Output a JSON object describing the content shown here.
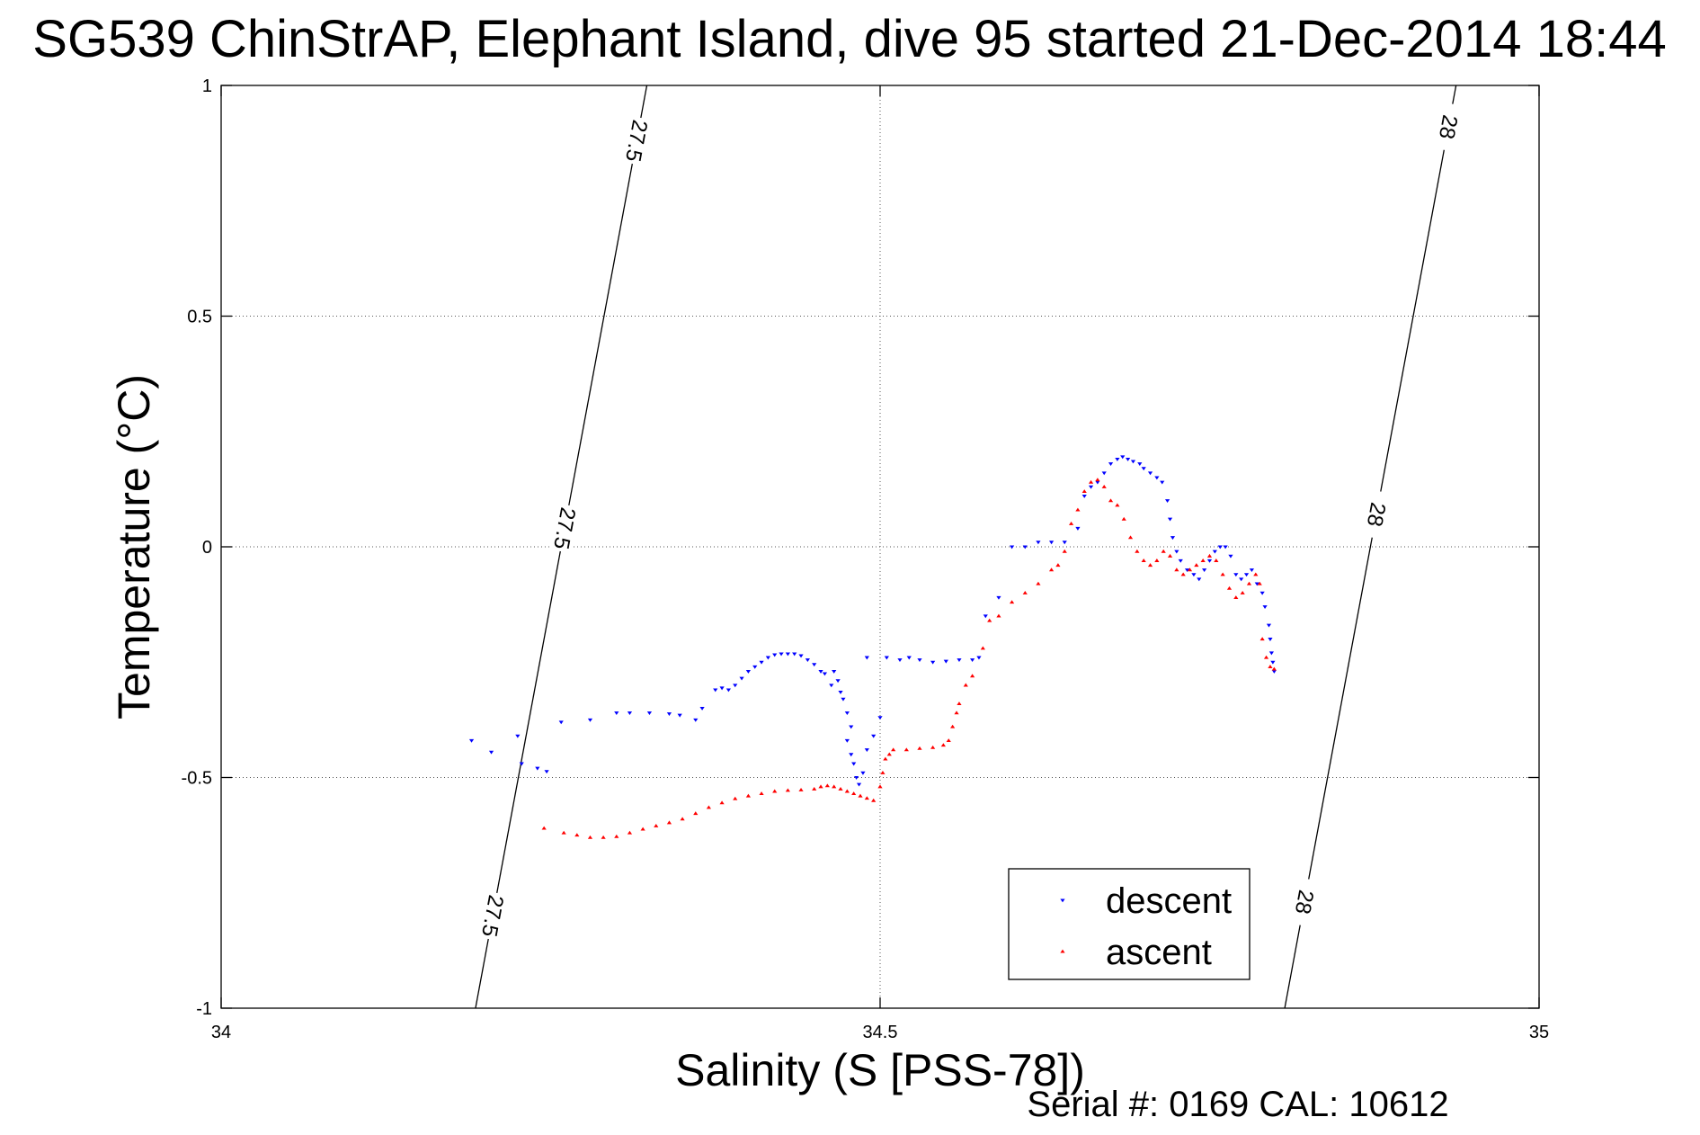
{
  "chart_data": {
    "type": "scatter",
    "title": "SG539 ChinStrAP, Elephant Island, dive 95 started 21-Dec-2014 18:44",
    "xlabel": "Salinity (S [PSS-78])",
    "ylabel": "Temperature (°C)",
    "xlim": [
      34,
      35
    ],
    "ylim": [
      -1,
      1
    ],
    "x_ticks": [
      {
        "value": 34,
        "label": "34"
      },
      {
        "value": 34.5,
        "label": "34.5"
      },
      {
        "value": 35,
        "label": "35"
      }
    ],
    "y_ticks": [
      {
        "value": 1,
        "label": "1"
      },
      {
        "value": 0.5,
        "label": "0.5"
      },
      {
        "value": 0,
        "label": "0"
      },
      {
        "value": -0.5,
        "label": "-0.5"
      },
      {
        "value": -1,
        "label": "-1"
      }
    ],
    "grid": true,
    "legend_position": "bottom-right",
    "series": [
      {
        "name": "descent",
        "marker": "triangle-down",
        "color": "#0000ff",
        "points": [
          [
            34.19,
            -0.42
          ],
          [
            34.205,
            -0.445
          ],
          [
            34.225,
            -0.41
          ],
          [
            34.228,
            -0.47
          ],
          [
            34.24,
            -0.48
          ],
          [
            34.247,
            -0.487
          ],
          [
            34.258,
            -0.38
          ],
          [
            34.28,
            -0.375
          ],
          [
            34.3,
            -0.36
          ],
          [
            34.31,
            -0.36
          ],
          [
            34.325,
            -0.36
          ],
          [
            34.34,
            -0.362
          ],
          [
            34.348,
            -0.365
          ],
          [
            34.36,
            -0.375
          ],
          [
            34.365,
            -0.35
          ],
          [
            34.375,
            -0.31
          ],
          [
            34.38,
            -0.306
          ],
          [
            34.385,
            -0.31
          ],
          [
            34.39,
            -0.3
          ],
          [
            34.395,
            -0.285
          ],
          [
            34.4,
            -0.27
          ],
          [
            34.405,
            -0.26
          ],
          [
            34.41,
            -0.25
          ],
          [
            34.415,
            -0.24
          ],
          [
            34.42,
            -0.234
          ],
          [
            34.425,
            -0.232
          ],
          [
            34.43,
            -0.232
          ],
          [
            34.435,
            -0.232
          ],
          [
            34.44,
            -0.236
          ],
          [
            34.445,
            -0.245
          ],
          [
            34.45,
            -0.255
          ],
          [
            34.455,
            -0.27
          ],
          [
            34.458,
            -0.275
          ],
          [
            34.463,
            -0.3
          ],
          [
            34.465,
            -0.27
          ],
          [
            34.468,
            -0.29
          ],
          [
            34.47,
            -0.315
          ],
          [
            34.472,
            -0.33
          ],
          [
            34.475,
            -0.36
          ],
          [
            34.478,
            -0.39
          ],
          [
            34.475,
            -0.42
          ],
          [
            34.478,
            -0.45
          ],
          [
            34.48,
            -0.47
          ],
          [
            34.482,
            -0.5
          ],
          [
            34.484,
            -0.515
          ],
          [
            34.487,
            -0.49
          ],
          [
            34.49,
            -0.44
          ],
          [
            34.495,
            -0.41
          ],
          [
            34.5,
            -0.37
          ],
          [
            34.49,
            -0.24
          ],
          [
            34.505,
            -0.24
          ],
          [
            34.515,
            -0.245
          ],
          [
            34.522,
            -0.24
          ],
          [
            34.53,
            -0.245
          ],
          [
            34.54,
            -0.25
          ],
          [
            34.55,
            -0.248
          ],
          [
            34.56,
            -0.245
          ],
          [
            34.57,
            -0.245
          ],
          [
            34.575,
            -0.24
          ],
          [
            34.58,
            -0.15
          ],
          [
            34.59,
            -0.11
          ],
          [
            34.6,
            0.0
          ],
          [
            34.61,
            0.0
          ],
          [
            34.62,
            0.01
          ],
          [
            34.63,
            0.01
          ],
          [
            34.64,
            0.01
          ],
          [
            34.65,
            0.04
          ],
          [
            34.655,
            0.11
          ],
          [
            34.66,
            0.13
          ],
          [
            34.665,
            0.14
          ],
          [
            34.67,
            0.16
          ],
          [
            34.675,
            0.18
          ],
          [
            34.68,
            0.19
          ],
          [
            34.684,
            0.195
          ],
          [
            34.688,
            0.19
          ],
          [
            34.692,
            0.185
          ],
          [
            34.697,
            0.18
          ],
          [
            34.7,
            0.17
          ],
          [
            34.705,
            0.16
          ],
          [
            34.71,
            0.15
          ],
          [
            34.714,
            0.14
          ],
          [
            34.718,
            0.1
          ],
          [
            34.72,
            0.06
          ],
          [
            34.722,
            0.02
          ],
          [
            34.725,
            -0.01
          ],
          [
            34.728,
            -0.03
          ],
          [
            34.733,
            -0.05
          ],
          [
            34.738,
            -0.06
          ],
          [
            34.742,
            -0.07
          ],
          [
            34.746,
            -0.05
          ],
          [
            34.75,
            -0.03
          ],
          [
            34.754,
            -0.01
          ],
          [
            34.758,
            0.0
          ],
          [
            34.762,
            0.0
          ],
          [
            34.766,
            -0.02
          ],
          [
            34.77,
            -0.06
          ],
          [
            34.774,
            -0.07
          ],
          [
            34.778,
            -0.06
          ],
          [
            34.782,
            -0.05
          ],
          [
            34.786,
            -0.08
          ],
          [
            34.79,
            -0.1
          ],
          [
            34.792,
            -0.13
          ],
          [
            34.795,
            -0.17
          ],
          [
            34.796,
            -0.2
          ],
          [
            34.797,
            -0.23
          ],
          [
            34.798,
            -0.25
          ],
          [
            34.799,
            -0.27
          ]
        ]
      },
      {
        "name": "ascent",
        "marker": "triangle-up",
        "color": "#ff0000",
        "points": [
          [
            34.245,
            -0.61
          ],
          [
            34.26,
            -0.62
          ],
          [
            34.27,
            -0.625
          ],
          [
            34.28,
            -0.63
          ],
          [
            34.29,
            -0.63
          ],
          [
            34.3,
            -0.628
          ],
          [
            34.31,
            -0.62
          ],
          [
            34.32,
            -0.612
          ],
          [
            34.33,
            -0.605
          ],
          [
            34.34,
            -0.598
          ],
          [
            34.35,
            -0.59
          ],
          [
            34.36,
            -0.578
          ],
          [
            34.37,
            -0.565
          ],
          [
            34.38,
            -0.555
          ],
          [
            34.39,
            -0.546
          ],
          [
            34.4,
            -0.54
          ],
          [
            34.41,
            -0.535
          ],
          [
            34.42,
            -0.53
          ],
          [
            34.43,
            -0.528
          ],
          [
            34.44,
            -0.527
          ],
          [
            34.45,
            -0.525
          ],
          [
            34.455,
            -0.52
          ],
          [
            34.46,
            -0.518
          ],
          [
            34.465,
            -0.52
          ],
          [
            34.47,
            -0.525
          ],
          [
            34.475,
            -0.53
          ],
          [
            34.48,
            -0.535
          ],
          [
            34.485,
            -0.54
          ],
          [
            34.49,
            -0.545
          ],
          [
            34.495,
            -0.55
          ],
          [
            34.5,
            -0.52
          ],
          [
            34.502,
            -0.49
          ],
          [
            34.504,
            -0.46
          ],
          [
            34.507,
            -0.45
          ],
          [
            34.51,
            -0.44
          ],
          [
            34.52,
            -0.44
          ],
          [
            34.53,
            -0.437
          ],
          [
            34.54,
            -0.435
          ],
          [
            34.548,
            -0.43
          ],
          [
            34.552,
            -0.42
          ],
          [
            34.555,
            -0.39
          ],
          [
            34.558,
            -0.36
          ],
          [
            34.56,
            -0.34
          ],
          [
            34.565,
            -0.3
          ],
          [
            34.57,
            -0.28
          ],
          [
            34.578,
            -0.22
          ],
          [
            34.583,
            -0.16
          ],
          [
            34.59,
            -0.15
          ],
          [
            34.6,
            -0.12
          ],
          [
            34.61,
            -0.1
          ],
          [
            34.62,
            -0.08
          ],
          [
            34.63,
            -0.05
          ],
          [
            34.635,
            -0.04
          ],
          [
            34.64,
            -0.01
          ],
          [
            34.645,
            0.05
          ],
          [
            34.65,
            0.08
          ],
          [
            34.655,
            0.12
          ],
          [
            34.66,
            0.14
          ],
          [
            34.665,
            0.145
          ],
          [
            34.67,
            0.13
          ],
          [
            34.675,
            0.1
          ],
          [
            34.68,
            0.09
          ],
          [
            34.685,
            0.06
          ],
          [
            34.69,
            0.02
          ],
          [
            34.695,
            -0.01
          ],
          [
            34.7,
            -0.03
          ],
          [
            34.705,
            -0.04
          ],
          [
            34.71,
            -0.03
          ],
          [
            34.715,
            -0.01
          ],
          [
            34.72,
            -0.02
          ],
          [
            34.725,
            -0.05
          ],
          [
            34.73,
            -0.06
          ],
          [
            34.735,
            -0.05
          ],
          [
            34.74,
            -0.04
          ],
          [
            34.745,
            -0.03
          ],
          [
            34.75,
            -0.02
          ],
          [
            34.755,
            -0.03
          ],
          [
            34.76,
            -0.06
          ],
          [
            34.765,
            -0.09
          ],
          [
            34.77,
            -0.11
          ],
          [
            34.775,
            -0.1
          ],
          [
            34.78,
            -0.08
          ],
          [
            34.785,
            -0.06
          ],
          [
            34.788,
            -0.08
          ],
          [
            34.79,
            -0.2
          ],
          [
            34.793,
            -0.24
          ],
          [
            34.796,
            -0.26
          ],
          [
            34.799,
            -0.265
          ]
        ]
      }
    ],
    "contours": [
      {
        "label": "27.5",
        "points": [
          [
            34.193,
            -1
          ],
          [
            34.323,
            1
          ]
        ],
        "label_y": [
          0.88,
          0.04,
          -0.8
        ]
      },
      {
        "label": "28",
        "points": [
          [
            34.807,
            -1
          ],
          [
            34.937,
            1
          ]
        ],
        "label_y": [
          0.91,
          0.07,
          -0.77
        ]
      }
    ],
    "footer": "Serial #: 0169 CAL: 10612"
  }
}
